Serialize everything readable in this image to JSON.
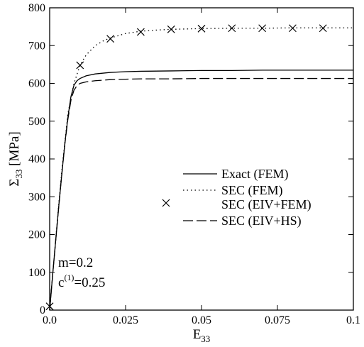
{
  "chart_data": {
    "type": "line",
    "xlabel": {
      "main": "E",
      "sub": "33"
    },
    "ylabel": {
      "main": "Σ",
      "sub": "33",
      "unit": " [MPa]"
    },
    "xlim": [
      0,
      0.1
    ],
    "ylim": [
      0,
      800
    ],
    "x_ticks": [
      0,
      0.025,
      0.05,
      0.075,
      0.1
    ],
    "x_tick_labels": [
      "0.0",
      "0.025",
      "0.05",
      "0.075",
      "0.1"
    ],
    "y_ticks": [
      0,
      100,
      200,
      300,
      400,
      500,
      600,
      700,
      800
    ],
    "y_tick_labels": [
      "0",
      "100",
      "200",
      "300",
      "400",
      "500",
      "600",
      "700",
      "800"
    ],
    "grid": false,
    "legend_position": "right",
    "series": [
      {
        "name": "Exact (FEM)",
        "style": "solid",
        "x": [
          0,
          0.001,
          0.002,
          0.003,
          0.004,
          0.005,
          0.006,
          0.007,
          0.008,
          0.009,
          0.01,
          0.012,
          0.015,
          0.02,
          0.025,
          0.03,
          0.04,
          0.05,
          0.06,
          0.07,
          0.08,
          0.09,
          0.1
        ],
        "y": [
          0,
          95,
          185,
          275,
          360,
          440,
          510,
          565,
          595,
          607,
          613,
          620,
          625,
          629,
          631,
          632,
          633,
          634,
          634,
          635,
          635,
          635,
          635
        ]
      },
      {
        "name": "SEC (FEM)",
        "style": "dotted",
        "x": [
          0,
          0.002,
          0.004,
          0.006,
          0.008,
          0.01,
          0.012,
          0.015,
          0.018,
          0.02,
          0.025,
          0.03,
          0.035,
          0.04,
          0.05,
          0.06,
          0.07,
          0.08,
          0.09,
          0.1
        ],
        "y": [
          0,
          190,
          370,
          520,
          600,
          648,
          675,
          700,
          714,
          720,
          732,
          738,
          741,
          743,
          745,
          746,
          746,
          747,
          747,
          747
        ]
      },
      {
        "name": "SEC (EIV+FEM)",
        "style": "markers",
        "x": [
          0,
          0.01,
          0.02,
          0.03,
          0.04,
          0.05,
          0.06,
          0.07,
          0.08,
          0.09
        ],
        "y": [
          10,
          648,
          718,
          736,
          743,
          745,
          746,
          746,
          746,
          746
        ]
      },
      {
        "name": "SEC (EIV+HS)",
        "style": "dashed",
        "x": [
          0,
          0.001,
          0.002,
          0.003,
          0.004,
          0.005,
          0.006,
          0.007,
          0.008,
          0.009,
          0.01,
          0.012,
          0.015,
          0.02,
          0.025,
          0.03,
          0.04,
          0.05,
          0.06,
          0.07,
          0.08,
          0.09,
          0.1
        ],
        "y": [
          0,
          95,
          185,
          275,
          360,
          440,
          505,
          555,
          582,
          594,
          600,
          604,
          607,
          610,
          611,
          612,
          612,
          613,
          613,
          613,
          613,
          613,
          613
        ]
      }
    ],
    "annotations": [
      {
        "main": "m=0.2"
      },
      {
        "main": "c",
        "sup": "(1)",
        "rest": "=0.25"
      }
    ]
  }
}
